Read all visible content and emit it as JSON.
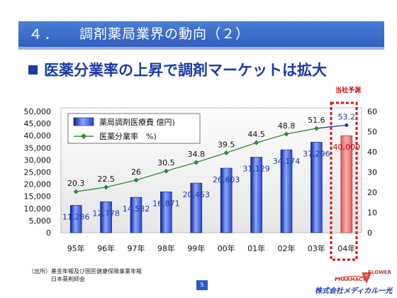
{
  "header": {
    "number": "４．",
    "title": "調剤薬局業界の動向（２）"
  },
  "subtitle": "医薬分業率の上昇で調剤マーケットは拡大",
  "forecast_label": "当社予測",
  "source": {
    "line1": "（出所）基金年報及び国民健康保険事業年報",
    "line2": "日本薬剤師会"
  },
  "page_number": "5",
  "logo": {
    "pharmacy": "PHARMACY",
    "flower": "FLOWER",
    "company": "株式会社メディカル一光"
  },
  "colors": {
    "header": "#2f5fbf",
    "accent_red": "#cc0000",
    "title_blue": "#1a3aa8",
    "line_green": "#2e8b2e",
    "line_forecast": "#1a3aa8"
  },
  "chart_data": {
    "type": "bar",
    "categories": [
      "95年",
      "96年",
      "97年",
      "98年",
      "99年",
      "00年",
      "01年",
      "02年",
      "03年",
      "04年"
    ],
    "series": [
      {
        "name": "薬局調剤医療費 億円)",
        "type": "bar",
        "axis": "left",
        "values": [
          11286,
          12778,
          14582,
          16871,
          20453,
          26603,
          31129,
          34174,
          37296,
          40000
        ],
        "labels": [
          "11,286",
          "12,778",
          "14,582",
          "16,871",
          "20,453",
          "26,603",
          "31,129",
          "34,174",
          "37,296",
          "40,000"
        ]
      },
      {
        "name": "医薬分業率　%)",
        "type": "line",
        "axis": "right",
        "values": [
          20.3,
          22.5,
          26,
          30.5,
          34.8,
          39.5,
          44.5,
          48.8,
          51.6,
          53.2
        ],
        "labels": [
          "20.3",
          "22.5",
          "26",
          "30.5",
          "34.8",
          "39.5",
          "44.5",
          "48.8",
          "51.6",
          "53.2"
        ]
      }
    ],
    "left_axis": {
      "ticks": [
        "0",
        "5,000",
        "10,000",
        "15,000",
        "20,000",
        "25,000",
        "30,000",
        "35,000",
        "40,000",
        "45,000",
        "50,000"
      ],
      "range": [
        0,
        50000
      ]
    },
    "right_axis": {
      "ticks": [
        "0",
        "10",
        "20",
        "30",
        "40",
        "50",
        "60"
      ],
      "range": [
        0,
        60
      ]
    },
    "forecast_index": 9,
    "legend_position": "top-left",
    "grid": false
  }
}
